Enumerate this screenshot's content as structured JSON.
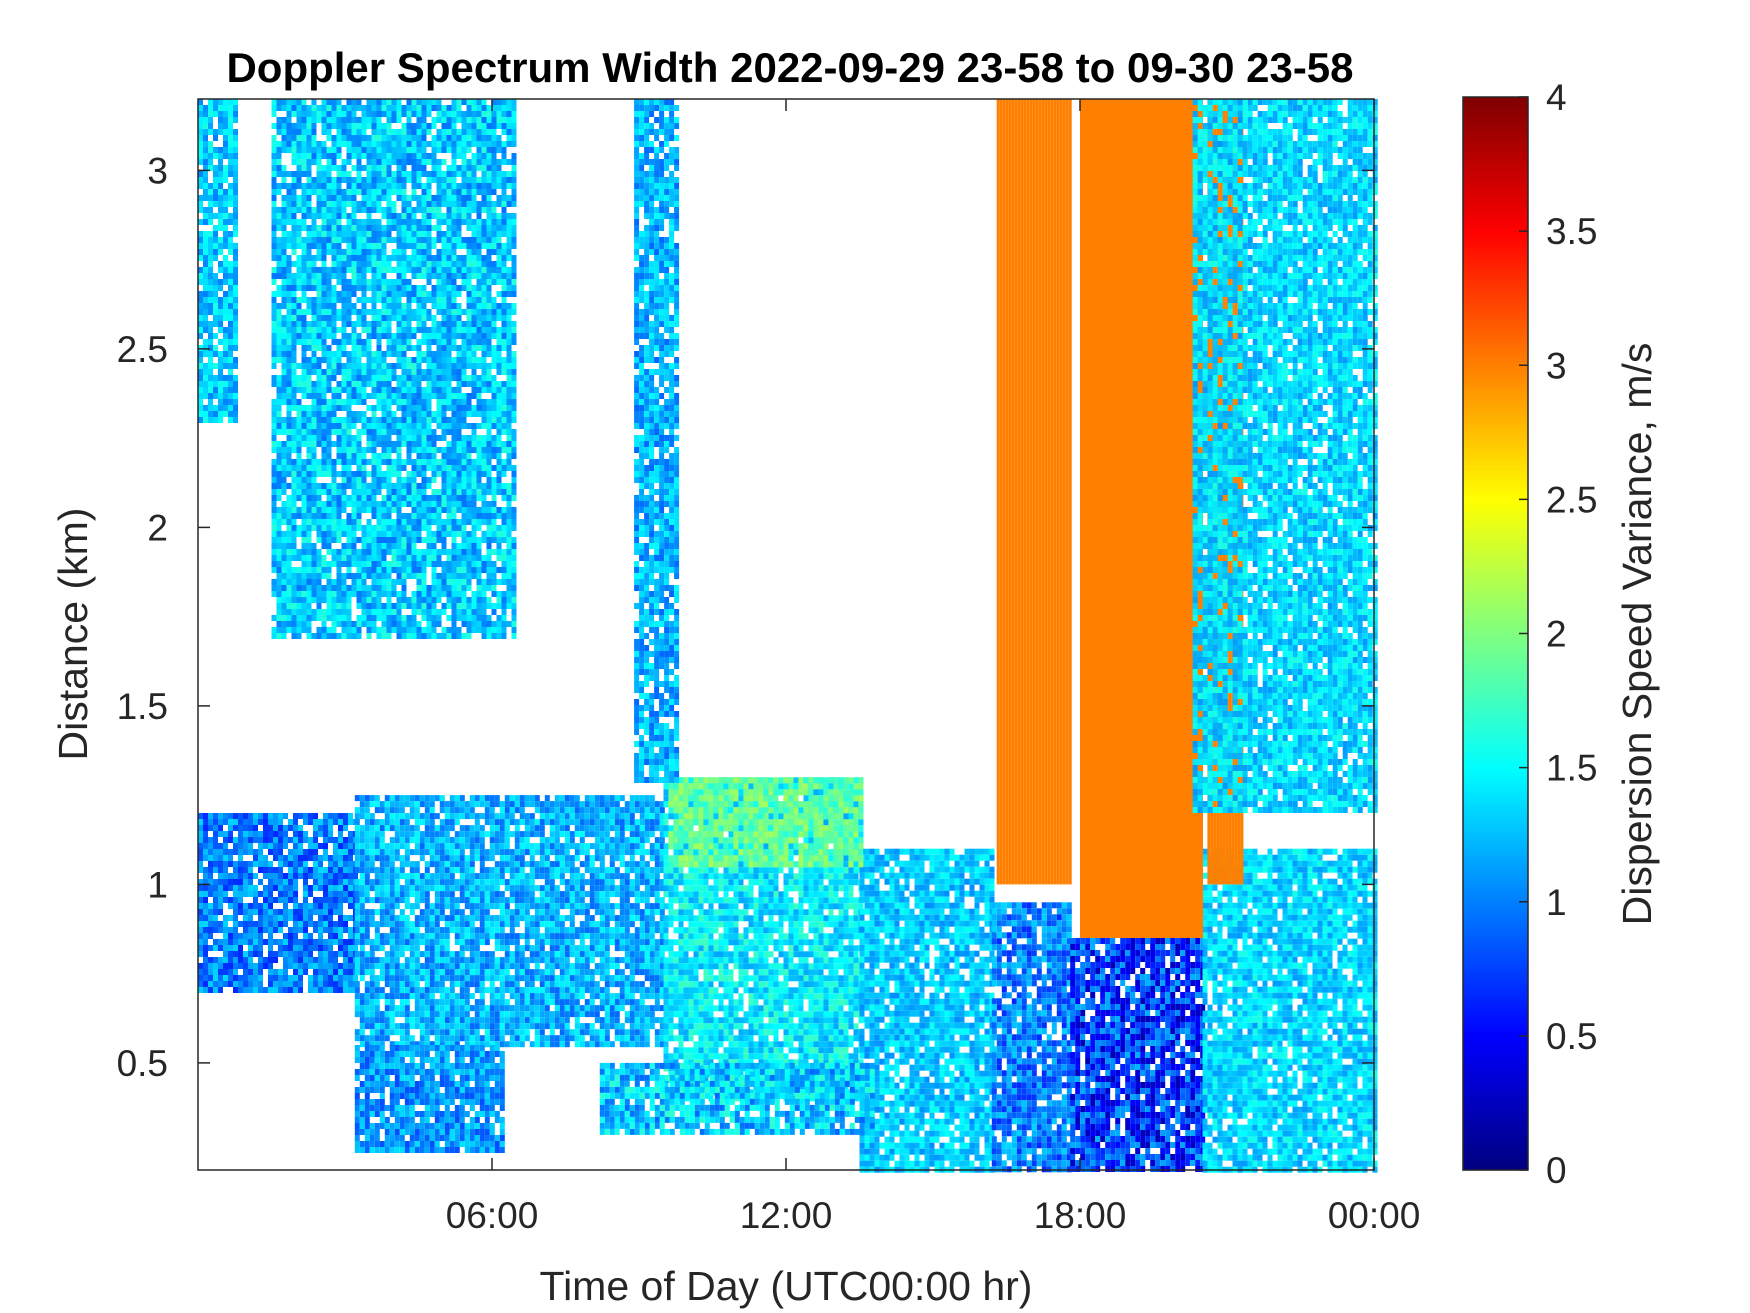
{
  "chart_data": {
    "type": "heatmap",
    "title": "Doppler Spectrum Width 2022-09-29 23-58 to 09-30 23-58",
    "xlabel": "Time of Day (UTC00:00 hr)",
    "ylabel": "Distance (km)",
    "colorbar_label": "Dispersion Speed Variance, m/s",
    "colormap": "jet",
    "x_unit": "hours since 2022-09-29 23:58 UTC",
    "xlim": [
      0,
      24
    ],
    "ylim": [
      0.2,
      3.2
    ],
    "clim": [
      0,
      4
    ],
    "x_ticks": [
      {
        "value": 6,
        "label": "06:00"
      },
      {
        "value": 12,
        "label": "12:00"
      },
      {
        "value": 18,
        "label": "18:00"
      },
      {
        "value": 24,
        "label": "00:00"
      }
    ],
    "y_ticks": [
      {
        "value": 0.5,
        "label": "0.5"
      },
      {
        "value": 1,
        "label": "1"
      },
      {
        "value": 1.5,
        "label": "1.5"
      },
      {
        "value": 2,
        "label": "2"
      },
      {
        "value": 2.5,
        "label": "2.5"
      },
      {
        "value": 3,
        "label": "3"
      }
    ],
    "colorbar_ticks": [
      {
        "value": 0,
        "label": "0"
      },
      {
        "value": 0.5,
        "label": "0.5"
      },
      {
        "value": 1,
        "label": "1"
      },
      {
        "value": 1.5,
        "label": "1.5"
      },
      {
        "value": 2,
        "label": "2"
      },
      {
        "value": 2.5,
        "label": "2.5"
      },
      {
        "value": 3,
        "label": "3"
      },
      {
        "value": 3.5,
        "label": "3.5"
      },
      {
        "value": 4,
        "label": "4"
      }
    ],
    "regions": [
      {
        "t": [
          0,
          3.2
        ],
        "top": 1.2,
        "base": 0.7,
        "value": 1.0,
        "spread": 0.35
      },
      {
        "t": [
          3.2,
          9.5
        ],
        "top": 1.25,
        "base": 0.55,
        "value": 1.2,
        "spread": 0.3
      },
      {
        "t": [
          9.5,
          13.5
        ],
        "top": 1.3,
        "base": 0.4,
        "value": 1.45,
        "spread": 0.3
      },
      {
        "t": [
          13.5,
          16.2
        ],
        "top": 1.1,
        "base": 0.2,
        "value": 1.3,
        "spread": 0.25
      },
      {
        "t": [
          16.2,
          17.8
        ],
        "top": 0.95,
        "base": 0.2,
        "value": 1.0,
        "spread": 0.35
      },
      {
        "t": [
          17.8,
          20.5
        ],
        "top": 0.85,
        "base": 0.2,
        "value": 0.7,
        "spread": 0.5
      },
      {
        "t": [
          20.5,
          24
        ],
        "top": 1.1,
        "base": 0.2,
        "value": 1.35,
        "spread": 0.25
      },
      {
        "t": [
          3.2,
          6.2
        ],
        "top": 0.55,
        "base": 0.25,
        "value": 1.1,
        "spread": 0.3
      },
      {
        "t": [
          8.2,
          13.8
        ],
        "top": 0.5,
        "base": 0.3,
        "value": 1.3,
        "spread": 0.4
      },
      {
        "t": [
          9.6,
          13.5
        ],
        "top": 1.3,
        "base": 1.05,
        "value": 1.9,
        "spread": 0.25
      },
      {
        "t": [
          16.3,
          17.8
        ],
        "top": 3.2,
        "base": 1.0,
        "value": 3.0,
        "spread": 0.0
      },
      {
        "t": [
          18.0,
          20.5
        ],
        "top": 3.2,
        "base": 0.85,
        "value": 3.0,
        "spread": 0.0
      },
      {
        "t": [
          20.6,
          21.3
        ],
        "top": 3.2,
        "base": 1.0,
        "value": 3.0,
        "spread": 0.0
      },
      {
        "t": [
          0,
          0.8
        ],
        "top": 3.2,
        "base": 2.3,
        "value": 1.3,
        "spread": 0.3
      },
      {
        "t": [
          1.5,
          6.5
        ],
        "top": 3.2,
        "base": 1.7,
        "value": 1.3,
        "spread": 0.35
      },
      {
        "t": [
          8.9,
          9.8
        ],
        "top": 3.2,
        "base": 1.3,
        "value": 1.2,
        "spread": 0.3
      },
      {
        "t": [
          20.3,
          24
        ],
        "top": 3.2,
        "base": 1.2,
        "value": 1.35,
        "spread": 0.25
      }
    ]
  }
}
